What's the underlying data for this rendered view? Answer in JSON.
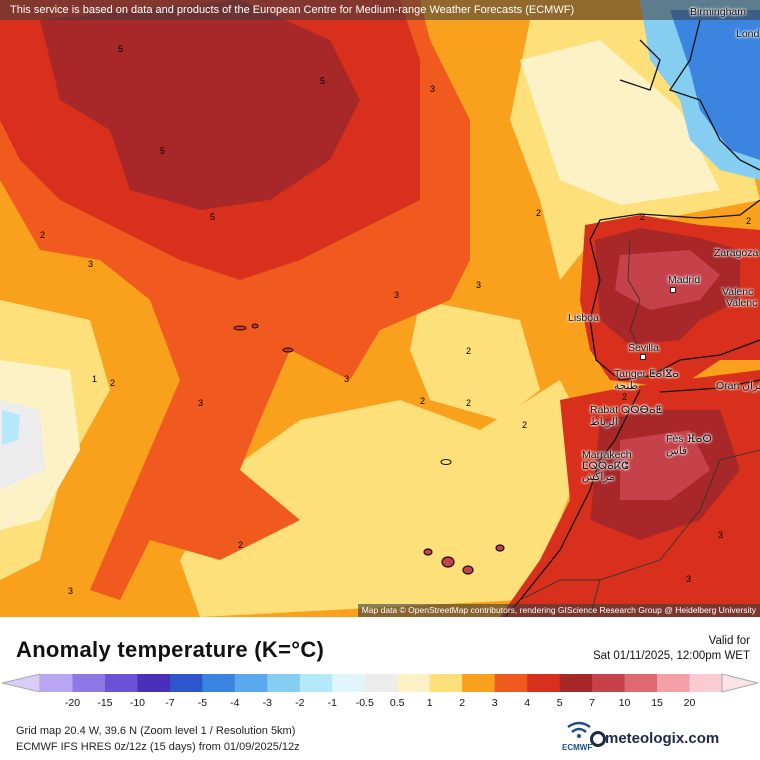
{
  "notice": "This service is based on data and products of the European Centre for Medium-range Weather Forecasts (ECMWF)",
  "attribution": "Map data © OpenStreetMap contributors, rendering GIScience Research Group @ Heidelberg University",
  "cities": [
    {
      "name": "Birmingham"
    },
    {
      "name": "Lond"
    },
    {
      "name": "Zaragoza"
    },
    {
      "name": "Madrid"
    },
    {
      "name": "Valenc"
    },
    {
      "name": "Valenc"
    },
    {
      "name": "Lisboa"
    },
    {
      "name": "Sevilla"
    },
    {
      "name": "Tanger ⵟⴰⵏⴵⴰ\nطنجة"
    },
    {
      "name": "Oran وهران"
    },
    {
      "name": "Rabat ⵕⵕⴱⴰⵟ\nالرباط"
    },
    {
      "name": "Fès ⴼⴰⵙ\nفاس"
    },
    {
      "name": "Marrakech\nⵎⵕⵕⴰⴽⵛ\nمراكش"
    }
  ],
  "contour_labels": [
    "5",
    "5",
    "5",
    "5",
    "3",
    "3",
    "3",
    "3",
    "3",
    "3",
    "2",
    "2",
    "2",
    "2",
    "2",
    "2",
    "2",
    "2",
    "2",
    "1",
    "3",
    "2",
    "3",
    "3",
    "2"
  ],
  "title": "Anomaly temperature (K=°C)",
  "valid_label": "Valid for",
  "valid_value": "Sat 01/11/2025, 12:00pm WET",
  "legend": {
    "ticks": [
      "-20",
      "-15",
      "-10",
      "-7",
      "-5",
      "-4",
      "-3",
      "-2",
      "-1",
      "-0.5",
      "0.5",
      "1",
      "2",
      "3",
      "4",
      "5",
      "7",
      "10",
      "15",
      "20"
    ],
    "colors": [
      "#b8a6f2",
      "#8e78e6",
      "#6a52d6",
      "#4a2fb8",
      "#2d56cc",
      "#3b85e0",
      "#5aa8ee",
      "#86cdf2",
      "#b5e8f8",
      "#e2f5fc",
      "#ececec",
      "#fcf2c6",
      "#fde07a",
      "#f9a11c",
      "#f05a1e",
      "#d8301c",
      "#a8282a",
      "#c6424a",
      "#e06a72",
      "#f3a0a6",
      "#f8ccd2"
    ]
  },
  "info_line1": "Grid map 20.4 W, 39.6 N (Zoom level 1 / Resolution 5km)",
  "info_line2": "ECMWF IFS HRES 0z/12z (15 days) from 01/09/2025/12z",
  "ecmwf_label": "ECMWF",
  "brand": "meteologix.com"
}
